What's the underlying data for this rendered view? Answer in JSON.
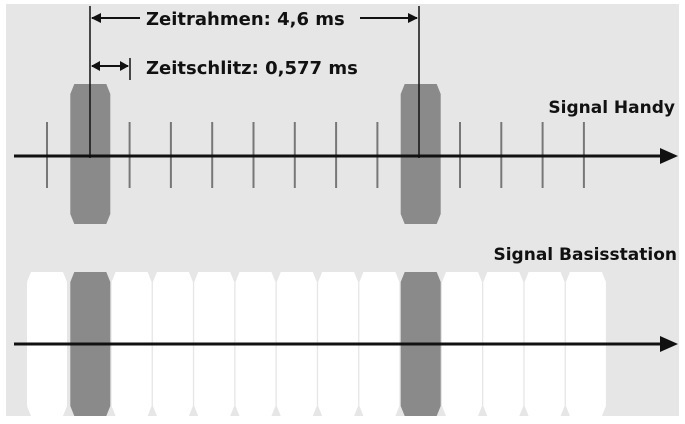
{
  "labels": {
    "frame": "Zeitrahmen: 4,6 ms",
    "slot": "Zeitschlitz: 0,577 ms",
    "handset_signal": "Signal Handy",
    "base_signal": "Signal Basisstation"
  },
  "colors": {
    "panel": "#e6e6e6",
    "line": "#111111",
    "tick": "#777777",
    "active_burst": "#8a8a8a",
    "idle_slot": "#ffffff"
  },
  "timeline": {
    "slots_shown": 14,
    "active_slots": [
      1,
      9
    ]
  }
}
